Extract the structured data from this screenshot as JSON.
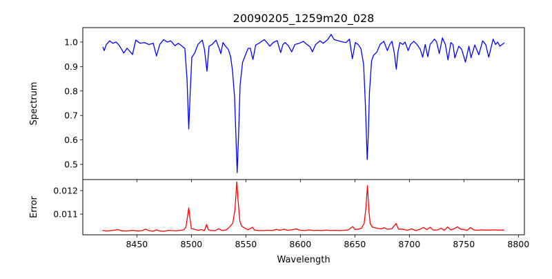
{
  "chart_data": [
    {
      "type": "line",
      "title": "20090205_1259m20_028",
      "xlabel": "",
      "ylabel": "Spectrum",
      "xlim": [
        8400.4,
        8805.5
      ],
      "ylim": [
        0.438,
        1.059
      ],
      "yticks": [
        0.5,
        0.6,
        0.7,
        0.8,
        0.9,
        1.0
      ],
      "yticklabels": [
        "0.5",
        "0.6",
        "0.7",
        "0.8",
        "0.9",
        "1.0"
      ],
      "grid": false,
      "color": "#0000ff",
      "series": [
        {
          "name": "Spectrum",
          "points": [
            [
              8418.8,
              0.98
            ],
            [
              8420,
              0.965
            ],
            [
              8422,
              0.99
            ],
            [
              8425,
              1.005
            ],
            [
              8428,
              0.995
            ],
            [
              8431,
              1.0
            ],
            [
              8434,
              0.985
            ],
            [
              8438,
              0.955
            ],
            [
              8441,
              0.975
            ],
            [
              8446,
              0.949
            ],
            [
              8449,
              1.008
            ],
            [
              8453,
              0.995
            ],
            [
              8457,
              0.998
            ],
            [
              8461,
              0.99
            ],
            [
              8465,
              0.995
            ],
            [
              8468,
              0.943
            ],
            [
              8471,
              0.99
            ],
            [
              8474.5,
              1.01
            ],
            [
              8478,
              1.0
            ],
            [
              8481,
              1.005
            ],
            [
              8485,
              0.985
            ],
            [
              8488,
              0.995
            ],
            [
              8491,
              0.985
            ],
            [
              8494,
              0.974
            ],
            [
              8496,
              0.85
            ],
            [
              8497.6,
              0.645
            ],
            [
              8499,
              0.8
            ],
            [
              8500.4,
              0.937
            ],
            [
              8503,
              0.955
            ],
            [
              8506,
              0.99
            ],
            [
              8510,
              1.008
            ],
            [
              8512,
              0.97
            ],
            [
              8514.3,
              0.881
            ],
            [
              8516.2,
              0.983
            ],
            [
              8519,
              0.99
            ],
            [
              8522.6,
              1.008
            ],
            [
              8525,
              0.98
            ],
            [
              8527,
              0.953
            ],
            [
              8529,
              0.998
            ],
            [
              8531,
              0.985
            ],
            [
              8534,
              0.969
            ],
            [
              8536,
              0.94
            ],
            [
              8537.7,
              0.884
            ],
            [
              8539.6,
              0.777
            ],
            [
              8541,
              0.6
            ],
            [
              8542,
              0.466
            ],
            [
              8543.3,
              0.62
            ],
            [
              8544.7,
              0.824
            ],
            [
              8547,
              0.918
            ],
            [
              8549,
              0.94
            ],
            [
              8552,
              0.974
            ],
            [
              8554,
              0.975
            ],
            [
              8556.5,
              0.929
            ],
            [
              8559,
              0.988
            ],
            [
              8562,
              0.995
            ],
            [
              8566.8,
              1.01
            ],
            [
              8569,
              1.0
            ],
            [
              8572,
              0.983
            ],
            [
              8575,
              0.998
            ],
            [
              8578.7,
              1.006
            ],
            [
              8581.9,
              0.957
            ],
            [
              8584,
              0.99
            ],
            [
              8586,
              0.998
            ],
            [
              8589,
              0.985
            ],
            [
              8592,
              0.96
            ],
            [
              8595,
              0.99
            ],
            [
              8599,
              0.995
            ],
            [
              8602.7,
              1.003
            ],
            [
              8606,
              0.99
            ],
            [
              8609,
              0.98
            ],
            [
              8611,
              0.96
            ],
            [
              8614,
              0.99
            ],
            [
              8618,
              1.005
            ],
            [
              8621,
              0.995
            ],
            [
              8625,
              1.01
            ],
            [
              8628.2,
              1.031
            ],
            [
              8631,
              1.01
            ],
            [
              8635,
              1.005
            ],
            [
              8639,
              1.0
            ],
            [
              8642,
              0.998
            ],
            [
              8645,
              1.012
            ],
            [
              8647.7,
              0.932
            ],
            [
              8650.4,
              0.998
            ],
            [
              8653,
              0.99
            ],
            [
              8655.5,
              0.974
            ],
            [
              8658,
              0.909
            ],
            [
              8659.6,
              0.748
            ],
            [
              8661.3,
              0.52
            ],
            [
              8662.3,
              0.62
            ],
            [
              8663.4,
              0.796
            ],
            [
              8665.3,
              0.923
            ],
            [
              8667,
              0.945
            ],
            [
              8670.3,
              0.96
            ],
            [
              8673,
              0.99
            ],
            [
              8676.6,
              1.003
            ],
            [
              8679.8,
              0.965
            ],
            [
              8682,
              0.99
            ],
            [
              8684,
              1.003
            ],
            [
              8686,
              0.96
            ],
            [
              8688,
              0.889
            ],
            [
              8689.5,
              0.96
            ],
            [
              8691.3,
              0.998
            ],
            [
              8694,
              0.99
            ],
            [
              8696,
              1.0
            ],
            [
              8698.9,
              0.965
            ],
            [
              8701,
              0.99
            ],
            [
              8704,
              1.003
            ],
            [
              8707,
              0.99
            ],
            [
              8710,
              0.97
            ],
            [
              8712.2,
              0.938
            ],
            [
              8714.5,
              0.99
            ],
            [
              8716.9,
              0.94
            ],
            [
              8719,
              0.99
            ],
            [
              8723,
              1.012
            ],
            [
              8725,
              1.0
            ],
            [
              8727.4,
              0.953
            ],
            [
              8730.3,
              1.017
            ],
            [
              8733,
              0.99
            ],
            [
              8735.4,
              0.927
            ],
            [
              8738,
              0.998
            ],
            [
              8740,
              0.99
            ],
            [
              8741.7,
              0.935
            ],
            [
              8745.3,
              0.983
            ],
            [
              8748,
              0.97
            ],
            [
              8751.4,
              0.918
            ],
            [
              8754.6,
              0.983
            ],
            [
              8756.5,
              0.936
            ],
            [
              8760,
              0.988
            ],
            [
              8763.7,
              0.948
            ],
            [
              8767.2,
              1.005
            ],
            [
              8770,
              0.99
            ],
            [
              8772.8,
              0.938
            ],
            [
              8776.8,
              1.012
            ],
            [
              8779,
              0.99
            ],
            [
              8781,
              1.0
            ],
            [
              8783,
              0.983
            ],
            [
              8787,
              0.997
            ]
          ]
        }
      ]
    },
    {
      "type": "line",
      "title": "",
      "xlabel": "Wavelength",
      "ylabel": "Error",
      "xlim": [
        8400.4,
        8805.5
      ],
      "ylim": [
        0.01012,
        0.01247
      ],
      "xticks": [
        8450,
        8500,
        8550,
        8600,
        8650,
        8700,
        8750,
        8800
      ],
      "xticklabels": [
        "8450",
        "8500",
        "8550",
        "8600",
        "8650",
        "8700",
        "8750",
        "8800"
      ],
      "yticks": [
        0.011,
        0.012
      ],
      "yticklabels": [
        "0.011",
        "0.012"
      ],
      "grid": false,
      "color": "#ff0000",
      "series": [
        {
          "name": "Error",
          "points": [
            [
              8418.5,
              0.01031
            ],
            [
              8422,
              0.01028
            ],
            [
              8426,
              0.0103
            ],
            [
              8430,
              0.01032
            ],
            [
              8433,
              0.01034
            ],
            [
              8436,
              0.01029
            ],
            [
              8440,
              0.01028
            ],
            [
              8444,
              0.0103
            ],
            [
              8447,
              0.01031
            ],
            [
              8451,
              0.01028
            ],
            [
              8455,
              0.0103
            ],
            [
              8458,
              0.01036
            ],
            [
              8461,
              0.0103
            ],
            [
              8465,
              0.01027
            ],
            [
              8468,
              0.01033
            ],
            [
              8471,
              0.01028
            ],
            [
              8475,
              0.01027
            ],
            [
              8479,
              0.01031
            ],
            [
              8482,
              0.0103
            ],
            [
              8486,
              0.01029
            ],
            [
              8490,
              0.01031
            ],
            [
              8493,
              0.01033
            ],
            [
              8495,
              0.01045
            ],
            [
              8496.8,
              0.011
            ],
            [
              8497.6,
              0.01127
            ],
            [
              8498.5,
              0.0109
            ],
            [
              8500,
              0.01038
            ],
            [
              8503,
              0.01035
            ],
            [
              8506,
              0.01031
            ],
            [
              8509,
              0.01034
            ],
            [
              8512,
              0.0103
            ],
            [
              8514,
              0.01056
            ],
            [
              8515.5,
              0.01034
            ],
            [
              8518,
              0.0103
            ],
            [
              8522,
              0.0103
            ],
            [
              8525,
              0.01038
            ],
            [
              8528,
              0.0103
            ],
            [
              8532,
              0.01033
            ],
            [
              8535,
              0.01045
            ],
            [
              8538,
              0.01062
            ],
            [
              8540,
              0.0112
            ],
            [
              8541.7,
              0.01237
            ],
            [
              8543,
              0.0115
            ],
            [
              8544.5,
              0.0107
            ],
            [
              8546,
              0.0105
            ],
            [
              8549,
              0.0104
            ],
            [
              8552,
              0.01033
            ],
            [
              8556,
              0.01044
            ],
            [
              8558,
              0.01032
            ],
            [
              8562,
              0.0103
            ],
            [
              8566,
              0.0103
            ],
            [
              8570,
              0.01031
            ],
            [
              8574,
              0.0103
            ],
            [
              8578,
              0.01035
            ],
            [
              8581,
              0.01031
            ],
            [
              8585,
              0.01036
            ],
            [
              8588,
              0.01031
            ],
            [
              8592,
              0.01033
            ],
            [
              8596,
              0.01037
            ],
            [
              8600,
              0.01031
            ],
            [
              8604,
              0.0103
            ],
            [
              8608,
              0.01033
            ],
            [
              8612,
              0.0103
            ],
            [
              8616,
              0.01031
            ],
            [
              8620,
              0.0103
            ],
            [
              8624,
              0.01032
            ],
            [
              8628,
              0.0103
            ],
            [
              8632,
              0.01031
            ],
            [
              8636,
              0.0103
            ],
            [
              8640,
              0.01031
            ],
            [
              8644,
              0.01033
            ],
            [
              8648,
              0.01047
            ],
            [
              8650,
              0.01035
            ],
            [
              8653,
              0.01036
            ],
            [
              8656,
              0.0104
            ],
            [
              8658.5,
              0.0106
            ],
            [
              8660.2,
              0.0113
            ],
            [
              8661.5,
              0.01221
            ],
            [
              8662.8,
              0.0112
            ],
            [
              8664,
              0.0106
            ],
            [
              8666,
              0.01045
            ],
            [
              8670,
              0.0104
            ],
            [
              8674,
              0.01037
            ],
            [
              8677,
              0.01042
            ],
            [
              8680,
              0.01035
            ],
            [
              8684,
              0.01038
            ],
            [
              8687.8,
              0.0106
            ],
            [
              8690,
              0.01036
            ],
            [
              8694,
              0.01036
            ],
            [
              8698,
              0.01031
            ],
            [
              8702,
              0.01037
            ],
            [
              8706,
              0.0103
            ],
            [
              8710,
              0.01036
            ],
            [
              8713,
              0.01043
            ],
            [
              8716,
              0.01034
            ],
            [
              8719,
              0.01044
            ],
            [
              8722,
              0.01032
            ],
            [
              8726,
              0.01033
            ],
            [
              8729,
              0.0104
            ],
            [
              8732,
              0.01031
            ],
            [
              8735,
              0.01045
            ],
            [
              8738,
              0.01033
            ],
            [
              8741,
              0.01038
            ],
            [
              8744,
              0.01046
            ],
            [
              8747,
              0.01036
            ],
            [
              8750,
              0.01034
            ],
            [
              8753,
              0.01031
            ],
            [
              8756,
              0.01043
            ],
            [
              8759,
              0.01033
            ],
            [
              8762,
              0.01031
            ],
            [
              8766,
              0.01033
            ],
            [
              8770,
              0.01032
            ],
            [
              8774,
              0.01032
            ],
            [
              8778,
              0.01033
            ],
            [
              8782,
              0.01032
            ],
            [
              8787,
              0.01032
            ]
          ]
        }
      ]
    }
  ]
}
